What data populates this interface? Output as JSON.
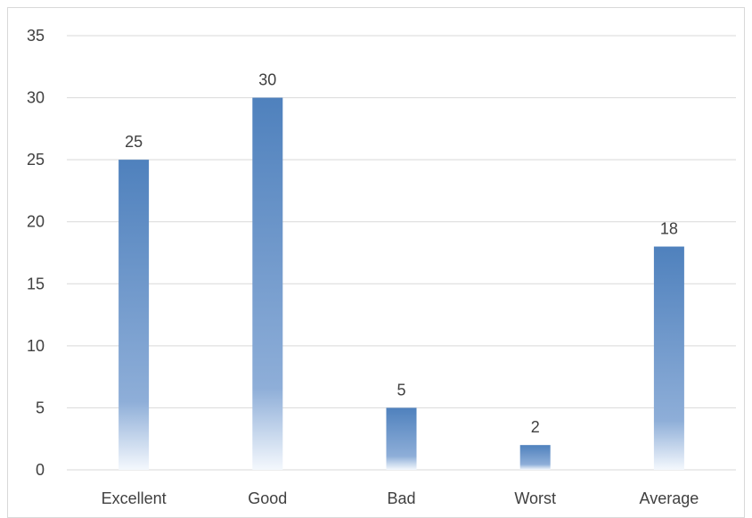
{
  "chart_data": {
    "type": "bar",
    "categories": [
      "Excellent",
      "Good",
      "Bad",
      "Worst",
      "Average"
    ],
    "values": [
      25,
      30,
      5,
      2,
      18
    ],
    "ylim": [
      0,
      35
    ],
    "yticks": [
      0,
      5,
      10,
      15,
      20,
      25,
      30,
      35
    ],
    "grid": true,
    "legend": "none",
    "data_labels": true,
    "colors": {
      "bar_top": "#4f81bd",
      "bar_bottom": "#ffffff",
      "grid": "#d9d9d9",
      "text": "#404040"
    }
  }
}
